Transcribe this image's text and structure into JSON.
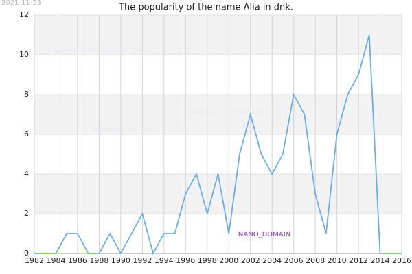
{
  "chart_data": {
    "type": "line",
    "title": "The popularity of the name Alia in dnk.",
    "date_stamp": "2021-11-23",
    "watermarks": [
      "Names of the World © 2021",
      "Names of the World © 2021",
      "Names of the World © 2021"
    ],
    "domain_label": "NANO_DOMAIN",
    "x": [
      1982,
      1983,
      1984,
      1985,
      1986,
      1987,
      1988,
      1989,
      1990,
      1991,
      1992,
      1993,
      1994,
      1995,
      1996,
      1997,
      1998,
      1999,
      2000,
      2001,
      2002,
      2003,
      2004,
      2005,
      2006,
      2007,
      2008,
      2009,
      2010,
      2011,
      2012,
      2013,
      2014,
      2015,
      2016
    ],
    "values": [
      0,
      0,
      0,
      1,
      1,
      0,
      0,
      1,
      0,
      1,
      2,
      0,
      1,
      1,
      3,
      4,
      2,
      4,
      1,
      5,
      7,
      5,
      4,
      5,
      8,
      7,
      3,
      1,
      6,
      8,
      9,
      11,
      0,
      0,
      0
    ],
    "color": "#6aaeea",
    "xlim": [
      1982,
      2016
    ],
    "xticks": [
      1982,
      1984,
      1986,
      1988,
      1990,
      1992,
      1994,
      1996,
      1998,
      2000,
      2002,
      2004,
      2006,
      2008,
      2010,
      2012,
      2014,
      2016
    ],
    "ylim": [
      0,
      12
    ],
    "yticks": [
      0,
      2,
      4,
      6,
      8,
      10,
      12
    ],
    "grid": true
  }
}
